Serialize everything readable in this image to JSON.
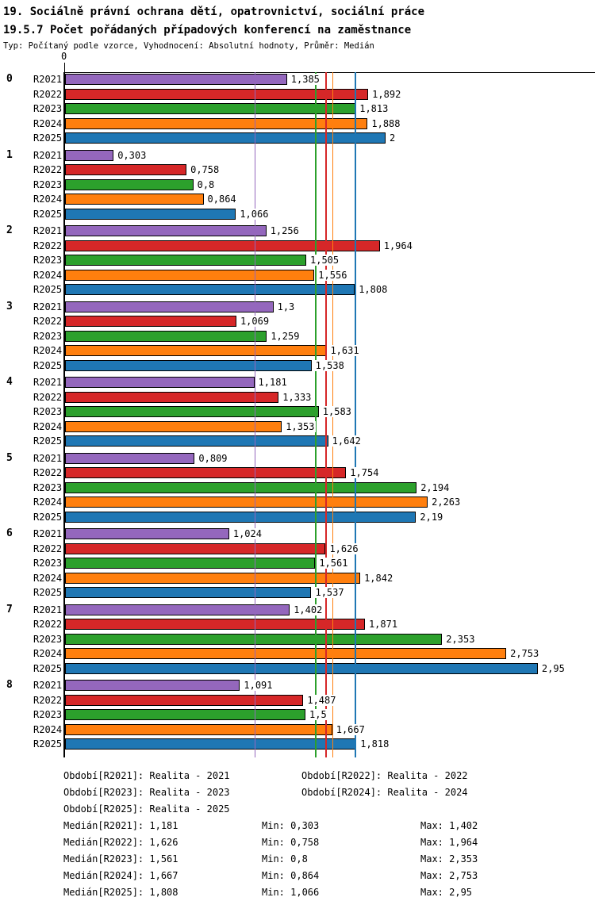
{
  "header": {
    "title_line1": "19. Sociálně právní ochrana dětí, opatrovnictví, sociální práce",
    "title_line2": "19.5.7 Počet pořádaných případových konferencí na zaměstnance",
    "meta": "Typ: Počítaný podle vzorce, Vyhodnocení: Absolutní hodnoty, Průměr: Medián"
  },
  "chart_data": {
    "type": "bar",
    "orientation": "horizontal",
    "decimal_separator": ",",
    "axis_origin_label": "0",
    "x_min": 0,
    "categories": [
      "0",
      "1",
      "2",
      "3",
      "4",
      "5",
      "6",
      "7",
      "8"
    ],
    "series": [
      {
        "name": "R2021",
        "color": "#9467bd",
        "median": 1.181,
        "value_labels": [
          "1,385",
          "0,303",
          "1,256",
          "1,3",
          "1,181",
          "0,809",
          "1,024",
          "1,402",
          "1,091"
        ]
      },
      {
        "name": "R2022",
        "color": "#d62728",
        "median": 1.626,
        "value_labels": [
          "1,892",
          "0,758",
          "1,964",
          "1,069",
          "1,333",
          "1,754",
          "1,626",
          "1,871",
          "1,487"
        ]
      },
      {
        "name": "R2023",
        "color": "#2ca02c",
        "median": 1.561,
        "value_labels": [
          "1,813",
          "0,8",
          "1,505",
          "1,259",
          "1,583",
          "2,194",
          "1,561",
          "2,353",
          "1,5"
        ]
      },
      {
        "name": "R2024",
        "color": "#ff7f0e",
        "median": 1.667,
        "value_labels": [
          "1,888",
          "0,864",
          "1,556",
          "1,631",
          "1,353",
          "2,263",
          "1,842",
          "2,753",
          "1,667"
        ]
      },
      {
        "name": "R2025",
        "color": "#1f77b4",
        "median": 1.808,
        "value_labels": [
          "2",
          "1,066",
          "1,808",
          "1,538",
          "1,642",
          "2,19",
          "1,537",
          "2,95",
          "1,818"
        ]
      }
    ]
  },
  "legend": {
    "period_rows": [
      [
        "Období[R2021]: Realita - 2021",
        "Období[R2022]: Realita - 2022"
      ],
      [
        "Období[R2023]: Realita - 2023",
        "Období[R2024]: Realita - 2024"
      ],
      [
        "Období[R2025]: Realita - 2025"
      ]
    ],
    "stat_rows": [
      [
        "Medián[R2021]: 1,181",
        "Min: 0,303",
        "Max: 1,402"
      ],
      [
        "Medián[R2022]: 1,626",
        "Min: 0,758",
        "Max: 1,964"
      ],
      [
        "Medián[R2023]: 1,561",
        "Min: 0,8",
        "Max: 2,353"
      ],
      [
        "Medián[R2024]: 1,667",
        "Min: 0,864",
        "Max: 2,753"
      ],
      [
        "Medián[R2025]: 1,808",
        "Min: 1,066",
        "Max: 2,95"
      ]
    ]
  }
}
